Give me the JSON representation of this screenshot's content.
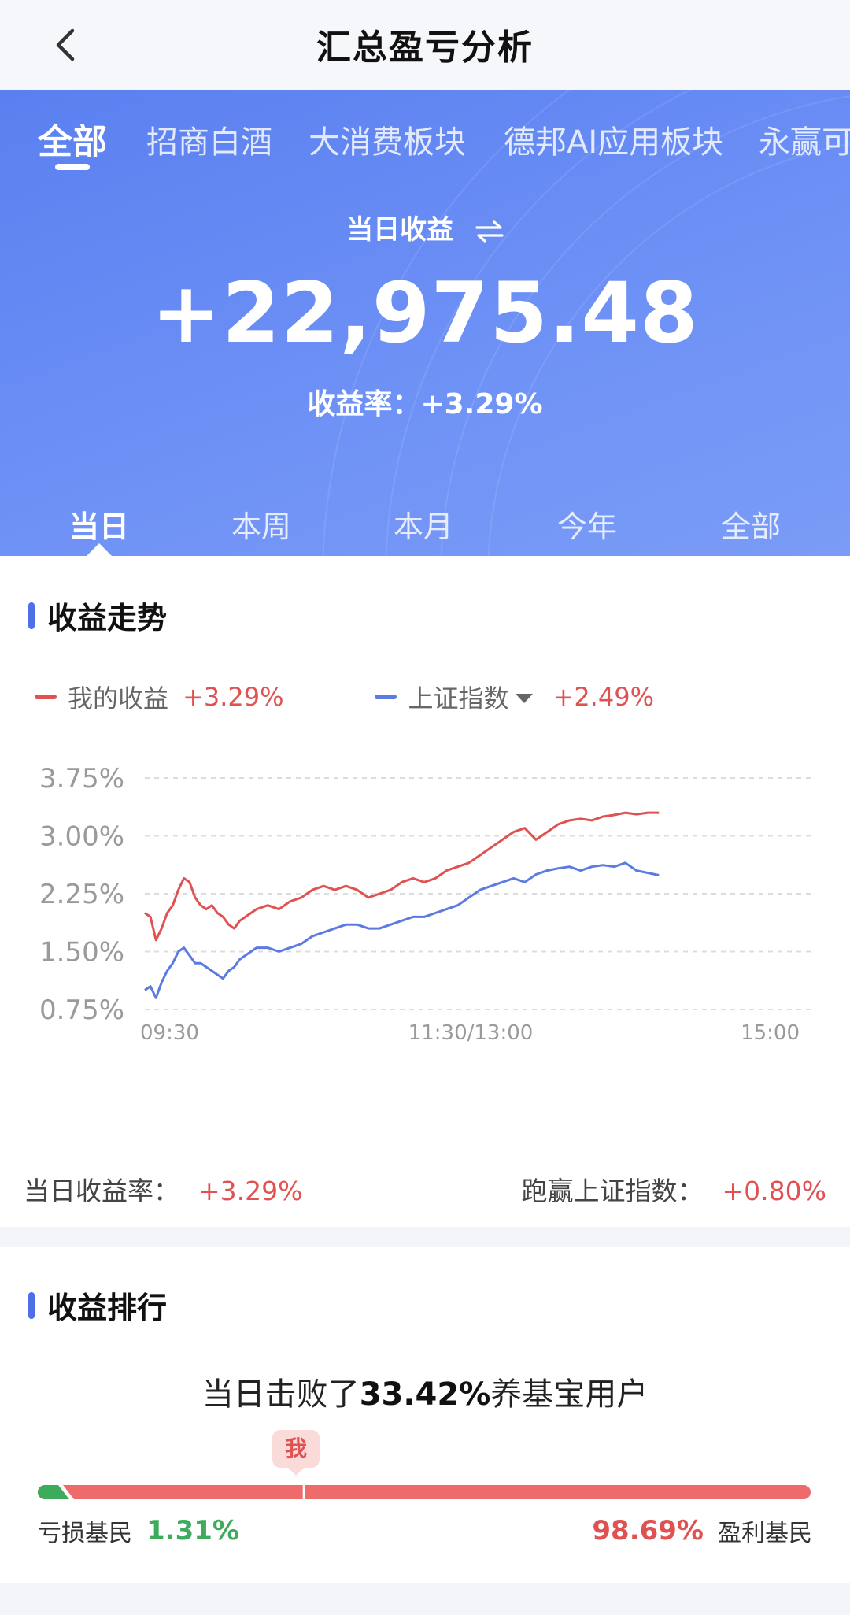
{
  "header": {
    "title": "汇总盈亏分析",
    "back_icon": "chevron-left-icon"
  },
  "category_tabs": [
    {
      "label": "全部",
      "active": true
    },
    {
      "label": "招商白酒",
      "active": false
    },
    {
      "label": "大消费板块",
      "active": false
    },
    {
      "label": "德邦AI应用板块",
      "active": false
    },
    {
      "label": "永赢可",
      "active": false
    }
  ],
  "hero": {
    "label": "当日收益",
    "swap_icon": "swap-arrows-icon",
    "amount": "+22,975.48",
    "rate_label": "收益率：",
    "rate_value": "+3.29%",
    "background": "#6a8ef4"
  },
  "period_tabs": [
    {
      "label": "当日",
      "active": true
    },
    {
      "label": "本周",
      "active": false
    },
    {
      "label": "本月",
      "active": false
    },
    {
      "label": "今年",
      "active": false
    },
    {
      "label": "全部",
      "active": false
    }
  ],
  "trend": {
    "title": "收益走势",
    "legend": [
      {
        "name": "我的收益",
        "value": "+3.29%",
        "color": "#e05252"
      },
      {
        "name": "上证指数",
        "value": "+2.49%",
        "color": "#5b7be0",
        "has_dropdown": true
      }
    ],
    "summary_left_label": "当日收益率：",
    "summary_left_value": "+3.29%",
    "summary_right_label": "跑赢上证指数：",
    "summary_right_value": "+0.80%"
  },
  "chart_data": {
    "type": "line",
    "y_ticks": [
      "3.75%",
      "3.00%",
      "2.25%",
      "1.50%",
      "0.75%"
    ],
    "x_ticks": [
      "09:30",
      "11:30/13:00",
      "15:00"
    ],
    "ylim": [
      0.75,
      3.75
    ],
    "grid": true,
    "series": [
      {
        "name": "我的收益",
        "color": "#e05252",
        "points": [
          [
            0,
            2.0
          ],
          [
            1,
            1.95
          ],
          [
            2,
            1.65
          ],
          [
            3,
            1.8
          ],
          [
            4,
            2.0
          ],
          [
            5,
            2.1
          ],
          [
            6,
            2.3
          ],
          [
            7,
            2.45
          ],
          [
            8,
            2.4
          ],
          [
            9,
            2.2
          ],
          [
            10,
            2.1
          ],
          [
            11,
            2.05
          ],
          [
            12,
            2.1
          ],
          [
            13,
            2.0
          ],
          [
            14,
            1.95
          ],
          [
            15,
            1.85
          ],
          [
            16,
            1.8
          ],
          [
            17,
            1.9
          ],
          [
            18,
            1.95
          ],
          [
            19,
            2.0
          ],
          [
            20,
            2.05
          ],
          [
            22,
            2.1
          ],
          [
            24,
            2.05
          ],
          [
            26,
            2.15
          ],
          [
            28,
            2.2
          ],
          [
            30,
            2.3
          ],
          [
            32,
            2.35
          ],
          [
            34,
            2.3
          ],
          [
            36,
            2.35
          ],
          [
            38,
            2.3
          ],
          [
            40,
            2.2
          ],
          [
            42,
            2.25
          ],
          [
            44,
            2.3
          ],
          [
            46,
            2.4
          ],
          [
            48,
            2.45
          ],
          [
            50,
            2.4
          ],
          [
            52,
            2.45
          ],
          [
            54,
            2.55
          ],
          [
            56,
            2.6
          ],
          [
            58,
            2.65
          ],
          [
            60,
            2.75
          ],
          [
            62,
            2.85
          ],
          [
            64,
            2.95
          ],
          [
            66,
            3.05
          ],
          [
            68,
            3.1
          ],
          [
            70,
            2.95
          ],
          [
            72,
            3.05
          ],
          [
            74,
            3.15
          ],
          [
            76,
            3.2
          ],
          [
            78,
            3.22
          ],
          [
            80,
            3.2
          ],
          [
            82,
            3.25
          ],
          [
            84,
            3.27
          ],
          [
            86,
            3.3
          ],
          [
            88,
            3.28
          ],
          [
            90,
            3.3
          ],
          [
            92,
            3.3
          ]
        ]
      },
      {
        "name": "上证指数",
        "color": "#5b7be0",
        "points": [
          [
            0,
            1.0
          ],
          [
            1,
            1.05
          ],
          [
            2,
            0.9
          ],
          [
            3,
            1.1
          ],
          [
            4,
            1.25
          ],
          [
            5,
            1.35
          ],
          [
            6,
            1.5
          ],
          [
            7,
            1.55
          ],
          [
            8,
            1.45
          ],
          [
            9,
            1.35
          ],
          [
            10,
            1.35
          ],
          [
            11,
            1.3
          ],
          [
            12,
            1.25
          ],
          [
            13,
            1.2
          ],
          [
            14,
            1.15
          ],
          [
            15,
            1.25
          ],
          [
            16,
            1.3
          ],
          [
            17,
            1.4
          ],
          [
            18,
            1.45
          ],
          [
            19,
            1.5
          ],
          [
            20,
            1.55
          ],
          [
            22,
            1.55
          ],
          [
            24,
            1.5
          ],
          [
            26,
            1.55
          ],
          [
            28,
            1.6
          ],
          [
            30,
            1.7
          ],
          [
            32,
            1.75
          ],
          [
            34,
            1.8
          ],
          [
            36,
            1.85
          ],
          [
            38,
            1.85
          ],
          [
            40,
            1.8
          ],
          [
            42,
            1.8
          ],
          [
            44,
            1.85
          ],
          [
            46,
            1.9
          ],
          [
            48,
            1.95
          ],
          [
            50,
            1.95
          ],
          [
            52,
            2.0
          ],
          [
            54,
            2.05
          ],
          [
            56,
            2.1
          ],
          [
            58,
            2.2
          ],
          [
            60,
            2.3
          ],
          [
            62,
            2.35
          ],
          [
            64,
            2.4
          ],
          [
            66,
            2.45
          ],
          [
            68,
            2.4
          ],
          [
            70,
            2.5
          ],
          [
            72,
            2.55
          ],
          [
            74,
            2.58
          ],
          [
            76,
            2.6
          ],
          [
            78,
            2.55
          ],
          [
            80,
            2.6
          ],
          [
            82,
            2.62
          ],
          [
            84,
            2.6
          ],
          [
            86,
            2.65
          ],
          [
            88,
            2.55
          ],
          [
            90,
            2.52
          ],
          [
            92,
            2.49
          ]
        ]
      }
    ],
    "x_domain": [
      0,
      120
    ]
  },
  "ranking": {
    "title": "收益排行",
    "headline_pre": "当日击败了",
    "headline_pct": "33.42%",
    "headline_post": "养基宝用户",
    "me_label": "我",
    "me_position": 0.3342,
    "loss_label": "亏损基民",
    "loss_value": "1.31%",
    "loss_share": 0.0131,
    "win_value": "98.69%",
    "win_label": "盈利基民",
    "win_share": 0.9869,
    "loss_color": "#3cac5c",
    "win_color": "#ee6b6b"
  }
}
